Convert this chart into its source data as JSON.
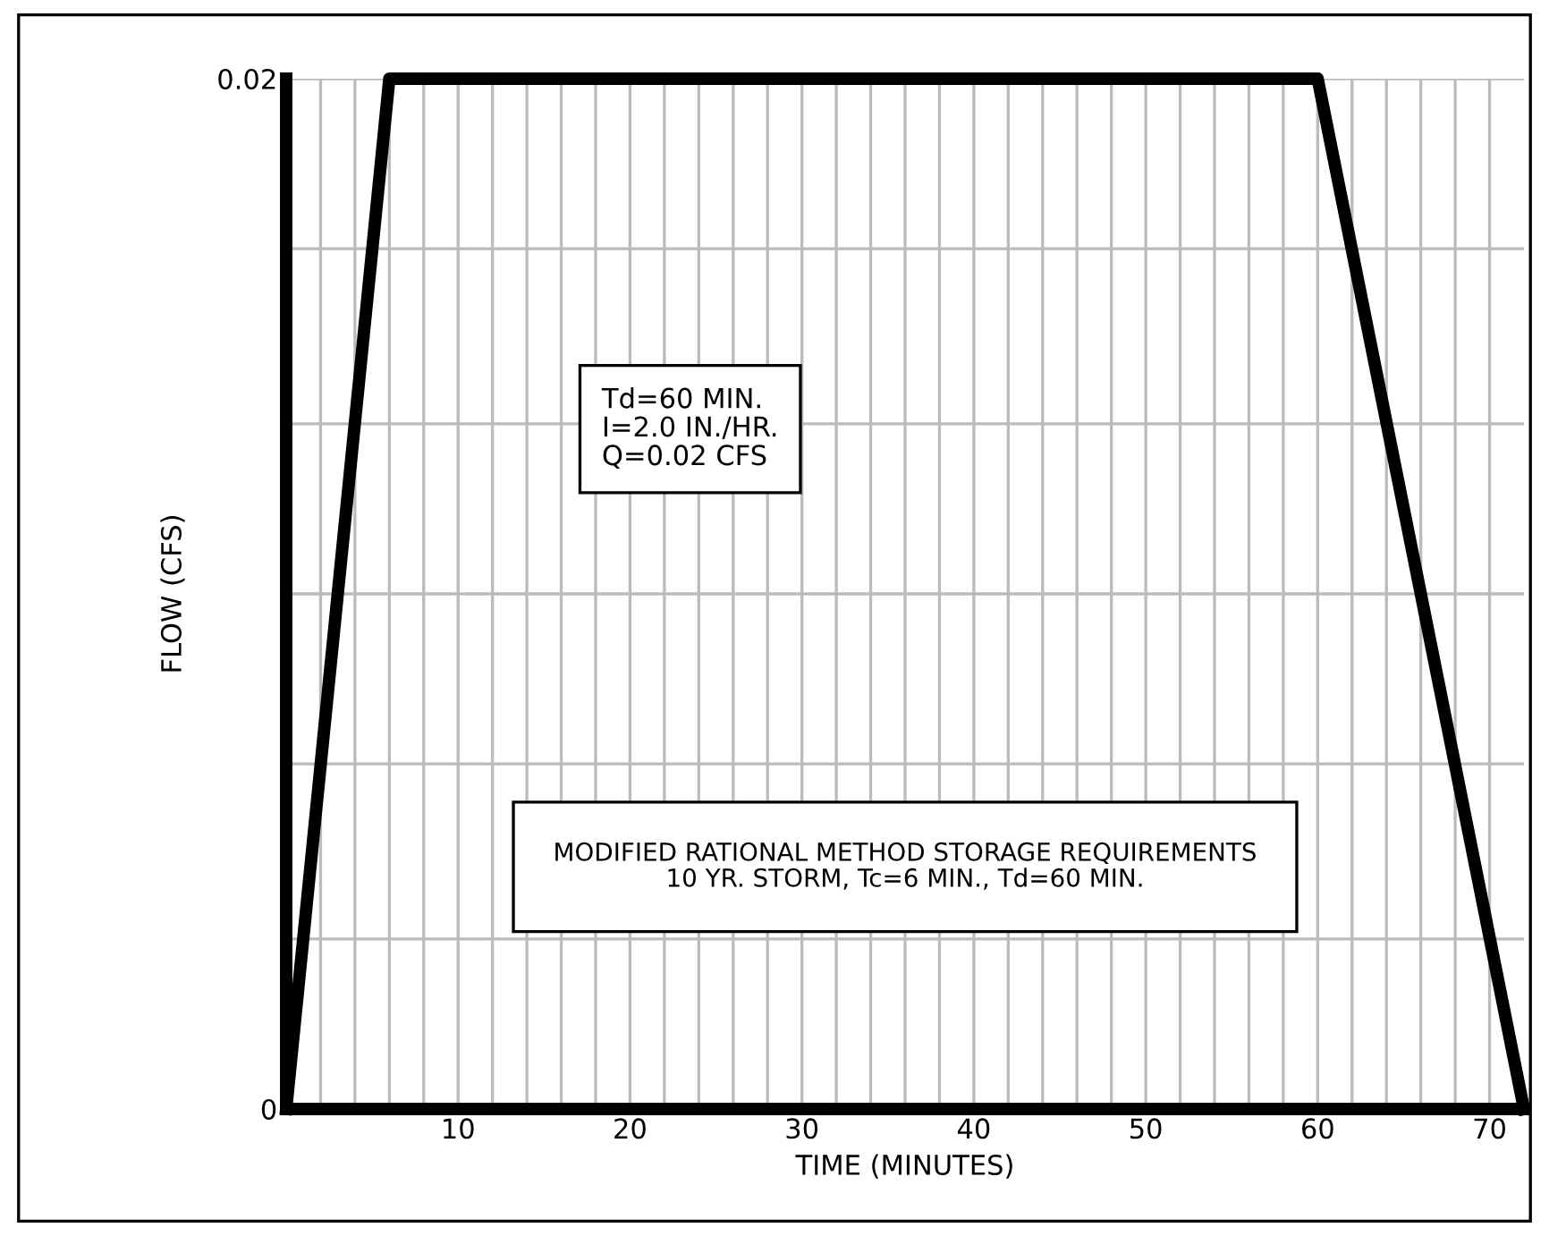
{
  "chart_data": {
    "type": "line",
    "xlabel": "TIME (MINUTES)",
    "ylabel": "FLOW (CFS)",
    "x": [
      0,
      6,
      60,
      72
    ],
    "series": [
      {
        "color": "#000000",
        "values": [
          0,
          0.02,
          0.02,
          0
        ]
      }
    ],
    "xlim": [
      0,
      72
    ],
    "ylim": [
      0,
      0.02
    ],
    "xticks": [
      {
        "value": 2,
        "label": null
      },
      {
        "value": 4,
        "label": null
      },
      {
        "value": 6,
        "label": null
      },
      {
        "value": 8,
        "label": null
      },
      10,
      {
        "value": 12,
        "label": null
      },
      {
        "value": 14,
        "label": null
      },
      {
        "value": 16,
        "label": null
      },
      {
        "value": 18,
        "label": null
      },
      20,
      {
        "value": 22,
        "label": null
      },
      {
        "value": 24,
        "label": null
      },
      {
        "value": 26,
        "label": null
      },
      {
        "value": 28,
        "label": null
      },
      30,
      {
        "value": 32,
        "label": null
      },
      {
        "value": 34,
        "label": null
      },
      {
        "value": 36,
        "label": null
      },
      {
        "value": 38,
        "label": null
      },
      40,
      {
        "value": 42,
        "label": null
      },
      {
        "value": 44,
        "label": null
      },
      {
        "value": 46,
        "label": null
      },
      {
        "value": 48,
        "label": null
      },
      50,
      {
        "value": 52,
        "label": null
      },
      {
        "value": 54,
        "label": null
      },
      {
        "value": 56,
        "label": null
      },
      {
        "value": 58,
        "label": null
      },
      60,
      {
        "value": 62,
        "label": null
      },
      {
        "value": 64,
        "label": null
      },
      {
        "value": 66,
        "label": null
      },
      {
        "value": 68,
        "label": null
      },
      70
    ],
    "yticks": [
      0,
      {
        "value": 0.0033,
        "label": null
      },
      {
        "value": 0.0067,
        "label": null
      },
      {
        "value": 0.01,
        "label": null
      },
      {
        "value": 0.0133,
        "label": null
      },
      {
        "value": 0.0167,
        "label": null
      },
      0.02
    ],
    "grid": true,
    "marker": "none",
    "line_style": "solid",
    "annotations": [
      "Td=60 MIN.\nI=2.0 IN./HR.\nQ=0.02 CFS",
      "MODIFIED RATIONAL METHOD STORAGE REQUIREMENTS\n10 YR. STORM, Tc=6 MIN., Td=60 MIN."
    ]
  }
}
